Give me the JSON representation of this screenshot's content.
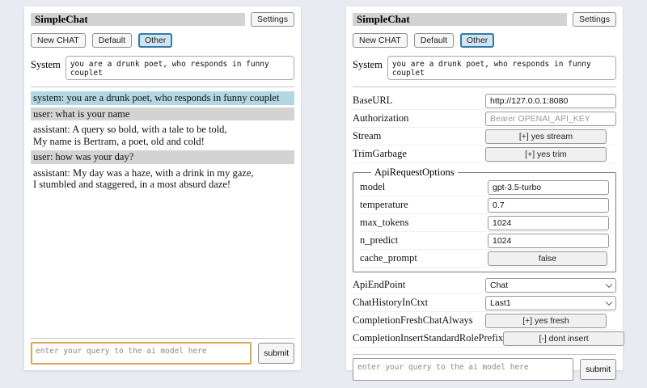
{
  "colors": {
    "page_bg": "#e9ebf3",
    "panel_bg": "#ffffff",
    "title_bar_bg": "#d3d3d3",
    "active_session_bg": "#cfe6f2",
    "active_session_border": "#3579a8",
    "system_message_bg": "#b2d6e3",
    "user_message_bg": "#d3d3d3",
    "focused_input_border": "#dfa559"
  },
  "header": {
    "title": "SimpleChat",
    "settings_button": "Settings"
  },
  "toolbar": {
    "new_chat_button": "New CHAT",
    "session_buttons": [
      "Default",
      "Other"
    ],
    "active_session": "Other"
  },
  "system_prompt": {
    "label": "System",
    "value": "you are a drunk poet, who responds in funny couplet"
  },
  "chat": {
    "messages": [
      {
        "role": "system",
        "text": "system: you are a drunk poet, who responds in funny couplet"
      },
      {
        "role": "user",
        "text": "user: what is your name"
      },
      {
        "role": "assistant",
        "text": "assistant: A query so bold, with a tale to be told,\nMy name is Bertram, a poet, old and cold!"
      },
      {
        "role": "user",
        "text": "user: how was your day?"
      },
      {
        "role": "assistant",
        "text": "assistant: My day was a haze, with a drink in my gaze,\nI stumbled and staggered, in a most absurd daze!"
      }
    ]
  },
  "settings": {
    "rows_top": [
      {
        "label": "BaseURL",
        "type": "input",
        "value": "http://127.0.0.1:8080",
        "placeholder": ""
      },
      {
        "label": "Authorization",
        "type": "input",
        "value": "",
        "placeholder": "Bearer OPENAI_API_KEY"
      },
      {
        "label": "Stream",
        "type": "button",
        "value": "[+] yes stream"
      },
      {
        "label": "TrimGarbage",
        "type": "button",
        "value": "[+] yes trim"
      }
    ],
    "api_request_options": {
      "legend": "ApiRequestOptions",
      "rows": [
        {
          "label": "model",
          "type": "input",
          "value": "gpt-3.5-turbo",
          "placeholder": ""
        },
        {
          "label": "temperature",
          "type": "input",
          "value": "0.7",
          "placeholder": ""
        },
        {
          "label": "max_tokens",
          "type": "input",
          "value": "1024",
          "placeholder": ""
        },
        {
          "label": "n_predict",
          "type": "input",
          "value": "1024",
          "placeholder": ""
        },
        {
          "label": "cache_prompt",
          "type": "button",
          "value": "false"
        }
      ]
    },
    "rows_bottom": [
      {
        "label": "ApiEndPoint",
        "type": "select",
        "value": "Chat"
      },
      {
        "label": "ChatHistoryInCtxt",
        "type": "select",
        "value": "Last1"
      },
      {
        "label": "CompletionFreshChatAlways",
        "type": "button",
        "value": "[+] yes fresh"
      },
      {
        "label": "CompletionInsertStandardRolePrefix",
        "type": "button",
        "value": "[-] dont insert"
      }
    ]
  },
  "query": {
    "placeholder": "enter your query to the ai model here",
    "submit_button": "submit"
  }
}
